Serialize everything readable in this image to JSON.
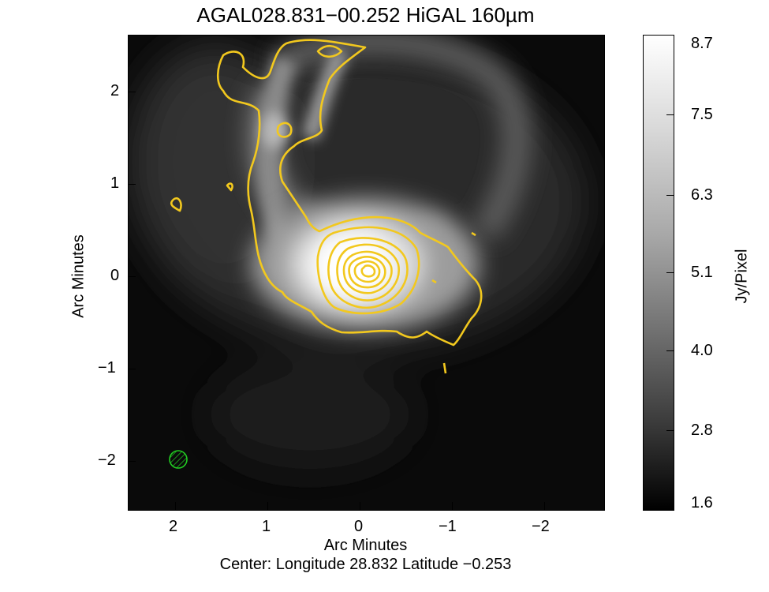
{
  "title": "AGAL028.831−00.252 HiGAL 160µm",
  "axes": {
    "x_label": "Arc Minutes",
    "y_label": "Arc Minutes",
    "x_ticks": [
      "2",
      "1",
      "0",
      "−1",
      "−2"
    ],
    "y_ticks": [
      "2",
      "1",
      "0",
      "−1",
      "−2"
    ]
  },
  "center_text": "Center:  Longitude 28.832 Latitude −0.253",
  "colorbar": {
    "label": "Jy/Pixel",
    "ticks": [
      "8.7",
      "7.5",
      "6.3",
      "5.1",
      "4.0",
      "2.8",
      "1.6"
    ]
  },
  "colors": {
    "contour": "#f2c81e",
    "beam": "#22cc22"
  }
}
